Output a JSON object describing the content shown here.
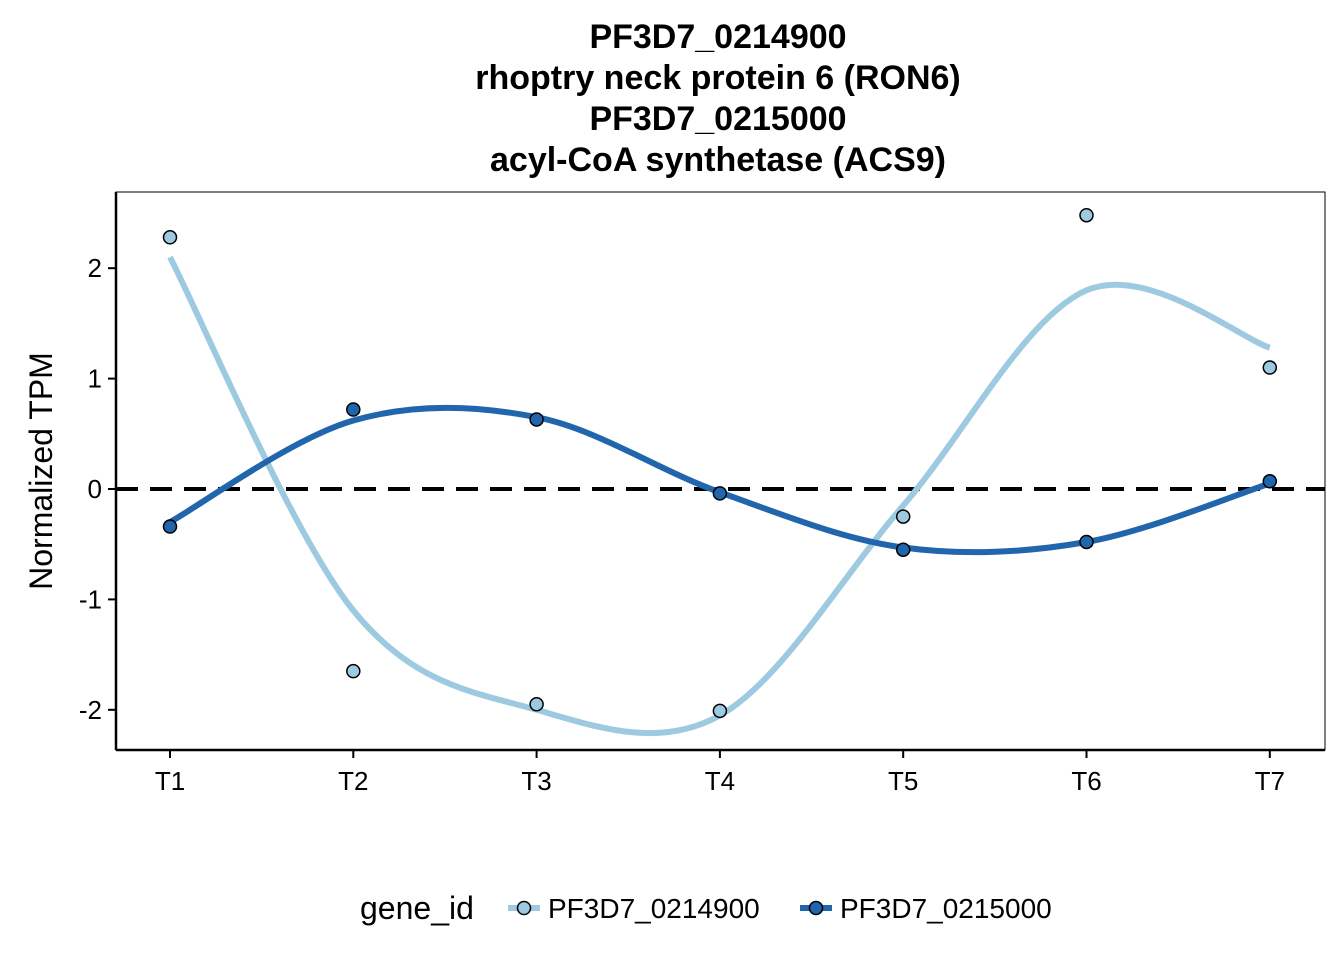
{
  "chart_data": {
    "type": "line",
    "title_lines": [
      "PF3D7_0214900",
      "rhoptry neck protein 6 (RON6)",
      "PF3D7_0215000",
      "acyl-CoA synthetase (ACS9)"
    ],
    "xlabel": "",
    "ylabel": "Normalized TPM",
    "categories": [
      "T1",
      "T2",
      "T3",
      "T4",
      "T5",
      "T6",
      "T7"
    ],
    "ylim": [
      -2.35,
      2.7
    ],
    "yticks": [
      2,
      1,
      0,
      -1,
      -2
    ],
    "ytick_labels": [
      "2",
      "1",
      "0",
      "-1",
      "-2"
    ],
    "reference_line": {
      "y": 0,
      "style": "dashed",
      "color": "#000000"
    },
    "legend": {
      "title": "gene_id",
      "position": "bottom"
    },
    "series": [
      {
        "name": "PF3D7_0214900",
        "color": "#9ECAE1",
        "points": [
          2.28,
          -1.65,
          -1.95,
          -2.01,
          -0.25,
          2.48,
          1.1
        ],
        "smooth": [
          2.1,
          -1.1,
          -2.0,
          -2.05,
          -0.15,
          1.8,
          1.28
        ]
      },
      {
        "name": "PF3D7_0215000",
        "color": "#2166AC",
        "points": [
          -0.34,
          0.72,
          0.63,
          -0.04,
          -0.55,
          -0.48,
          0.07
        ],
        "smooth": [
          -0.3,
          0.62,
          0.65,
          -0.03,
          -0.53,
          -0.48,
          0.05
        ]
      }
    ],
    "grid": false
  }
}
